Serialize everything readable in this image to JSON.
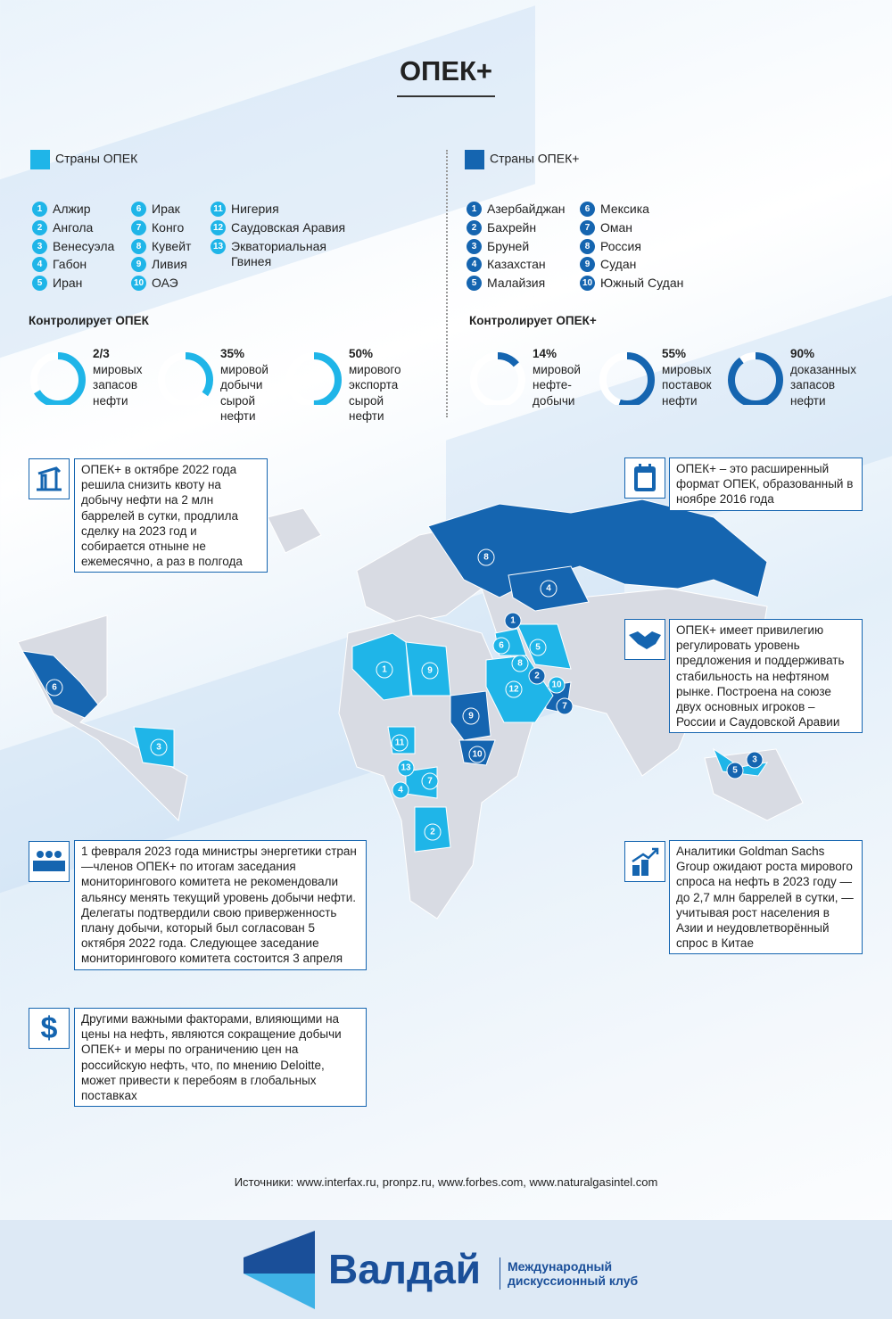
{
  "title": "ОПЕК+",
  "colors": {
    "opec": "#1fb5e8",
    "opec_plus": "#1565b0",
    "land": "#d8dbe3"
  },
  "opec": {
    "legend": "Страны ОПЕК",
    "subtitle": "Контролирует ОПЕК",
    "countries": [
      "Алжир",
      "Ангола",
      "Венесуэла",
      "Габон",
      "Иран",
      "Ирак",
      "Конго",
      "Кувейт",
      "Ливия",
      "ОАЭ",
      "Нигерия",
      "Саудовская Аравия",
      "Экваториальная Гвинея"
    ],
    "stats": [
      {
        "value": "2/3",
        "fraction": 0.667,
        "label": [
          "мировых",
          "запасов",
          "нефти"
        ]
      },
      {
        "value": "35%",
        "fraction": 0.35,
        "label": [
          "мировой",
          "добычи",
          "сырой",
          "нефти"
        ]
      },
      {
        "value": "50%",
        "fraction": 0.5,
        "label": [
          "мирового",
          "экспорта",
          "сырой",
          "нефти"
        ]
      }
    ]
  },
  "opec_plus": {
    "legend": "Страны ОПЕК+",
    "subtitle": "Контролирует ОПЕК+",
    "countries": [
      "Азербайджан",
      "Бахрейн",
      "Бруней",
      "Казахстан",
      "Малайзия",
      "Мексика",
      "Оман",
      "Россия",
      "Судан",
      "Южный Судан"
    ],
    "stats": [
      {
        "value": "14%",
        "fraction": 0.14,
        "label": [
          "мировой",
          "нефте-",
          "добычи"
        ]
      },
      {
        "value": "55%",
        "fraction": 0.55,
        "label": [
          "мировых",
          "поставок",
          "нефти"
        ]
      },
      {
        "value": "90%",
        "fraction": 0.9,
        "label": [
          "доказанных",
          "запасов",
          "нефти"
        ]
      }
    ]
  },
  "notes": {
    "quota": {
      "icon": "oil-pump-icon",
      "text": "ОПЕК+ в октябре 2022 года решила снизить квоту на добычу нефти на 2 млн баррелей в сутки, продлила сделку на 2023 год и собирается отныне не ежемесячно, а раз в полгода"
    },
    "format": {
      "icon": "calendar-icon",
      "text": "ОПЕК+ – это расширенный формат ОПЕК, образованный в ноябре 2016 года"
    },
    "privilege": {
      "icon": "handshake-icon",
      "text": "ОПЕК+ имеет привилегию регулировать уровень предложения и поддерживать стабильность на нефтяном рынке. Построена на союзе двух основных игроков – России и Саудовской Аравии"
    },
    "committee": {
      "icon": "meeting-icon",
      "text": "1 февраля 2023 года министры энергетики стран—членов ОПЕК+ по итогам заседания мониторингового комитета не рекомендовали альянсу менять текущий уровень добычи нефти. Делегаты подтвердили свою привер­женность плану добычи, который был согласован 5 октября 2022 года. Следующее заседание мониторингового комитета состоится 3 апреля"
    },
    "goldman": {
      "icon": "growth-chart-icon",
      "text": "Аналитики Goldman Sachs Group ожидают роста мирового спроса на нефть в 2023 году — до 2,7 млн баррелей в сутки, — учитывая рост населения в Азии и неудовлетворённый спрос в Китае"
    },
    "factors": {
      "icon": "dollar-icon",
      "text": "Другими важными факторами, влияющими на цены на нефть, являются сокращение добычи ОПЕК+ и меры по ограничению цен на российскую нефть, что, по мнению Deloitte, может привести к перебоям в глобальных поставках"
    }
  },
  "sources": "Источники: www.interfax.ru, pronpz.ru, www.forbes.com, www.naturalgasintel.com",
  "footer": {
    "brand": "Валдай",
    "tagline_1": "Международный",
    "tagline_2": "дискуссионный клуб"
  }
}
